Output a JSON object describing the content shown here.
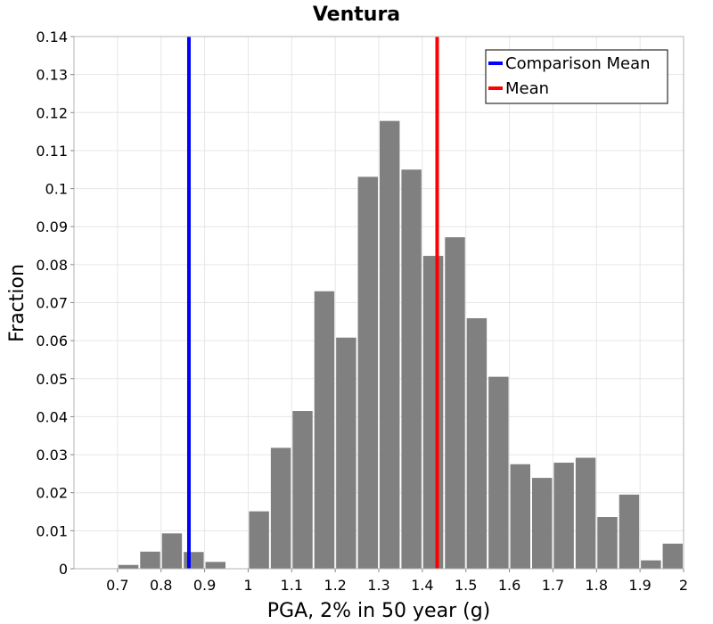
{
  "chart_data": {
    "type": "bar",
    "title": "Ventura",
    "xlabel": "PGA, 2% in 50 year (g)",
    "ylabel": "Fraction",
    "xlim": [
      0.6,
      2.0
    ],
    "ylim": [
      0,
      0.14
    ],
    "xticks": [
      "0.7",
      "0.8",
      "0.9",
      "1",
      "1.1",
      "1.2",
      "1.3",
      "1.4",
      "1.5",
      "1.6",
      "1.7",
      "1.8",
      "1.9",
      "2"
    ],
    "yticks": [
      "0",
      "0.01",
      "0.02",
      "0.03",
      "0.04",
      "0.05",
      "0.06",
      "0.07",
      "0.08",
      "0.09",
      "0.1",
      "0.11",
      "0.12",
      "0.13",
      "0.14"
    ],
    "grid": true,
    "legend_position": "top-right",
    "bin_width": 0.05,
    "bins": [
      {
        "x": 0.725,
        "value": 0.001
      },
      {
        "x": 0.775,
        "value": 0.0045
      },
      {
        "x": 0.825,
        "value": 0.0093
      },
      {
        "x": 0.875,
        "value": 0.0044
      },
      {
        "x": 0.925,
        "value": 0.0018
      },
      {
        "x": 0.975,
        "value": 0.0
      },
      {
        "x": 1.025,
        "value": 0.0151
      },
      {
        "x": 1.075,
        "value": 0.0318
      },
      {
        "x": 1.125,
        "value": 0.0415
      },
      {
        "x": 1.175,
        "value": 0.073
      },
      {
        "x": 1.225,
        "value": 0.0608
      },
      {
        "x": 1.275,
        "value": 0.1031
      },
      {
        "x": 1.325,
        "value": 0.1178
      },
      {
        "x": 1.375,
        "value": 0.105
      },
      {
        "x": 1.425,
        "value": 0.0823
      },
      {
        "x": 1.475,
        "value": 0.0872
      },
      {
        "x": 1.525,
        "value": 0.0659
      },
      {
        "x": 1.575,
        "value": 0.0505
      },
      {
        "x": 1.625,
        "value": 0.0275
      },
      {
        "x": 1.675,
        "value": 0.0239
      },
      {
        "x": 1.725,
        "value": 0.0279
      },
      {
        "x": 1.775,
        "value": 0.0292
      },
      {
        "x": 1.825,
        "value": 0.0136
      },
      {
        "x": 1.875,
        "value": 0.0195
      },
      {
        "x": 1.925,
        "value": 0.0022
      },
      {
        "x": 1.975,
        "value": 0.0066
      }
    ],
    "bar_color": "#808080",
    "reference_lines": [
      {
        "name": "Comparison Mean",
        "x": 0.864,
        "color": "#0000ff"
      },
      {
        "name": "Mean",
        "x": 1.434,
        "color": "#ff0000"
      }
    ]
  }
}
